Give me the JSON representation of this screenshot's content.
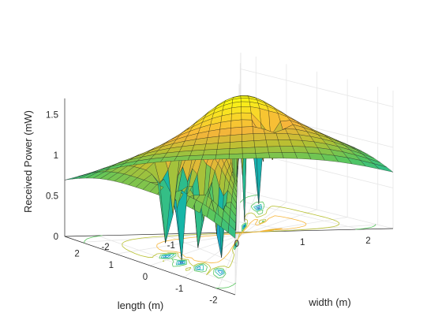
{
  "chart_data": {
    "type": "surface",
    "title": "",
    "xlabel": "length (m)",
    "ylabel": "width (m)",
    "zlabel": "Received Power (mW)",
    "xlim": [
      -2.5,
      2.5
    ],
    "ylim": [
      -2.5,
      2.5
    ],
    "zlim": [
      0,
      1.7
    ],
    "x_ticks": [
      2,
      1,
      0,
      -1,
      -2
    ],
    "y_ticks": [
      -2,
      -1,
      0,
      1,
      2
    ],
    "z_ticks": [
      0,
      0.5,
      1,
      1.5
    ],
    "x_tick_labels": [
      "2",
      "1",
      "0",
      "-1",
      "-2"
    ],
    "y_tick_labels": [
      "-2",
      "-1",
      "0",
      "1",
      "2"
    ],
    "z_tick_labels": [
      "0",
      "0.5",
      "1",
      "1.5"
    ],
    "grid": true,
    "colormap": [
      "#3e26a8",
      "#2f64e8",
      "#1a98d4",
      "#17b8a5",
      "#58c75e",
      "#b8c032",
      "#f6b53a",
      "#f9dc26",
      "#f9fb0e"
    ],
    "contour_projection": true,
    "contour_levels": [
      0.2,
      0.4,
      0.6,
      0.8,
      1.0,
      1.2
    ],
    "model": "edge-dropoff surface with central dome peak near 1.65 mW, plateau about 1.4 mW, corners about 0.5 mW, with sharp localized dips (holes) to near 0",
    "peak_mW": 1.65,
    "corner_mW": 0.5,
    "grid_n": 25,
    "dips": [
      {
        "x": 0.2,
        "y": -1.8,
        "depth": 1.0
      },
      {
        "x": -0.4,
        "y": -1.9,
        "depth": 1.0
      },
      {
        "x": -1.1,
        "y": -1.8,
        "depth": 1.0
      },
      {
        "x": -1.8,
        "y": -1.7,
        "depth": 1.0
      },
      {
        "x": -2.0,
        "y": -0.2,
        "depth": 1.0
      },
      {
        "x": -1.9,
        "y": 0.8,
        "depth": 1.0
      },
      {
        "x": -1.7,
        "y": 1.9,
        "depth": 1.0
      },
      {
        "x": -0.9,
        "y": 1.2,
        "depth": 0.55
      },
      {
        "x": -1.4,
        "y": 1.6,
        "depth": 0.45
      },
      {
        "x": 1.2,
        "y": 0.8,
        "depth": 0.4
      }
    ]
  }
}
